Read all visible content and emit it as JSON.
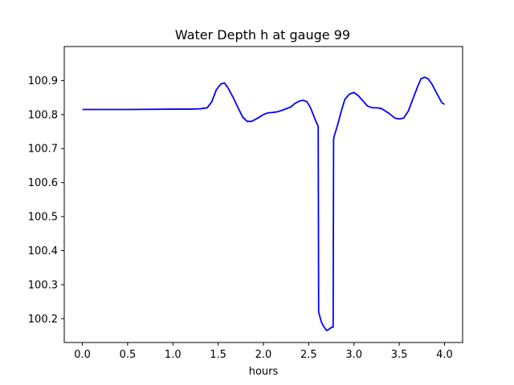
{
  "chart_data": {
    "type": "line",
    "title": "Water Depth h at gauge 99",
    "xlabel": "hours",
    "ylabel": "",
    "xlim": [
      -0.2,
      4.2
    ],
    "ylim": [
      100.13,
      101.0
    ],
    "xticks": [
      "0.0",
      "0.5",
      "1.0",
      "1.5",
      "2.0",
      "2.5",
      "3.0",
      "3.5",
      "4.0"
    ],
    "yticks": [
      "100.2",
      "100.3",
      "100.4",
      "100.5",
      "100.6",
      "100.7",
      "100.8",
      "100.9"
    ],
    "grid": false,
    "color": "#0000ff",
    "series": [
      {
        "x": [
          0.0,
          0.5,
          1.0,
          1.2,
          1.3,
          1.38,
          1.43,
          1.48,
          1.53,
          1.57,
          1.61,
          1.67,
          1.72,
          1.77,
          1.82,
          1.87,
          1.94,
          2.0,
          2.05,
          2.1,
          2.15,
          2.2,
          2.25,
          2.3,
          2.35,
          2.4,
          2.44,
          2.48,
          2.52,
          2.55,
          2.58,
          2.605,
          2.61,
          2.64,
          2.67,
          2.7,
          2.73,
          2.755,
          2.77,
          2.775,
          2.78,
          2.82,
          2.86,
          2.9,
          2.95,
          3.0,
          3.05,
          3.1,
          3.15,
          3.2,
          3.25,
          3.3,
          3.38,
          3.45,
          3.5,
          3.55,
          3.6,
          3.65,
          3.7,
          3.74,
          3.78,
          3.82,
          3.86,
          3.9,
          3.94,
          3.97,
          4.0
        ],
        "y": [
          100.815,
          100.815,
          100.816,
          100.816,
          100.817,
          100.82,
          100.838,
          100.873,
          100.89,
          100.893,
          100.878,
          100.848,
          100.82,
          100.793,
          100.78,
          100.78,
          100.79,
          100.8,
          100.805,
          100.806,
          100.808,
          100.812,
          100.817,
          100.822,
          100.833,
          100.84,
          100.842,
          100.838,
          100.82,
          100.8,
          100.78,
          100.765,
          100.22,
          100.19,
          100.175,
          100.165,
          100.17,
          100.175,
          100.175,
          100.725,
          100.735,
          100.77,
          100.81,
          100.845,
          100.86,
          100.865,
          100.855,
          100.84,
          100.825,
          100.82,
          100.82,
          100.818,
          100.805,
          100.79,
          100.787,
          100.79,
          100.81,
          100.845,
          100.88,
          100.905,
          100.91,
          100.905,
          100.89,
          100.87,
          100.85,
          100.835,
          100.83
        ]
      }
    ]
  }
}
